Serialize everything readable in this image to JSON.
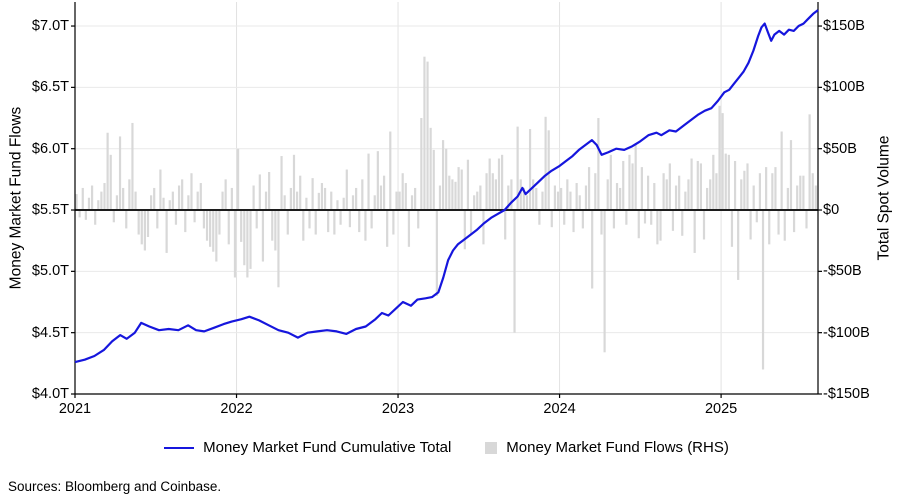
{
  "source_note": "Sources: Bloomberg and Coinbase.",
  "left_axis": {
    "title": "Money Market Fund Flows",
    "ticks": [
      "$7.0T",
      "$6.5T",
      "$6.0T",
      "$5.5T",
      "$5.0T",
      "$4.5T",
      "$4.0T"
    ],
    "tick_values": [
      7.0,
      6.5,
      6.0,
      5.5,
      5.0,
      4.5,
      4.0
    ]
  },
  "right_axis": {
    "title": "Total Spot Volume",
    "ticks": [
      "$150B",
      "$100B",
      "$50B",
      "$0",
      "-$50B",
      "-$100B",
      "-$150B"
    ],
    "tick_values": [
      150,
      100,
      50,
      0,
      -50,
      -100,
      -150
    ]
  },
  "x_axis": {
    "ticks": [
      "2021",
      "2022",
      "2023",
      "2024",
      "2025"
    ],
    "tick_values": [
      2021,
      2022,
      2023,
      2024,
      2025
    ]
  },
  "legend": [
    {
      "label": "Money Market Fund Cumulative Total",
      "type": "line",
      "color": "#1616dd"
    },
    {
      "label": "Money Market Fund Flows (RHS)",
      "type": "square",
      "color": "#d8d8d8"
    }
  ],
  "colors": {
    "line": "#1616dd",
    "bar": "#d8d8d8",
    "grid": "#e9e9e9",
    "grid_vertical": "#e2e2e2",
    "zero_line": "#1c1c1c",
    "spine": "#000000"
  },
  "chart_data": {
    "type": "combo",
    "grid": true,
    "legend_position": "bottom",
    "x_range": [
      2021.0,
      2025.6
    ],
    "left_value_range": [
      4.0,
      7.196
    ],
    "right_value_range": [
      -150,
      169.6
    ],
    "series": [
      {
        "name": "Money Market Fund Cumulative Total",
        "type": "line",
        "axis": "left",
        "unit": "$T",
        "x": [
          2021.0,
          2021.06,
          2021.12,
          2021.18,
          2021.23,
          2021.28,
          2021.32,
          2021.37,
          2021.41,
          2021.46,
          2021.52,
          2021.58,
          2021.64,
          2021.7,
          2021.75,
          2021.8,
          2021.86,
          2021.92,
          2021.97,
          2022.03,
          2022.08,
          2022.14,
          2022.2,
          2022.26,
          2022.32,
          2022.38,
          2022.44,
          2022.5,
          2022.56,
          2022.62,
          2022.68,
          2022.74,
          2022.8,
          2022.86,
          2022.9,
          2022.94,
          2022.99,
          2023.03,
          2023.08,
          2023.12,
          2023.17,
          2023.21,
          2023.25,
          2023.28,
          2023.31,
          2023.34,
          2023.37,
          2023.41,
          2023.45,
          2023.49,
          2023.53,
          2023.58,
          2023.62,
          2023.66,
          2023.7,
          2023.74,
          2023.77,
          2023.79,
          2023.83,
          2023.87,
          2023.91,
          2023.95,
          2024.0,
          2024.04,
          2024.08,
          2024.12,
          2024.16,
          2024.2,
          2024.23,
          2024.26,
          2024.3,
          2024.35,
          2024.4,
          2024.45,
          2024.5,
          2024.55,
          2024.6,
          2024.63,
          2024.68,
          2024.72,
          2024.77,
          2024.82,
          2024.86,
          2024.9,
          2024.94,
          2024.98,
          2025.02,
          2025.05,
          2025.08,
          2025.11,
          2025.14,
          2025.17,
          2025.2,
          2025.23,
          2025.25,
          2025.27,
          2025.29,
          2025.31,
          2025.33,
          2025.36,
          2025.39,
          2025.42,
          2025.45,
          2025.48,
          2025.51,
          2025.54,
          2025.57,
          2025.6
        ],
        "y": [
          4.26,
          4.28,
          4.31,
          4.36,
          4.43,
          4.48,
          4.45,
          4.5,
          4.58,
          4.55,
          4.52,
          4.53,
          4.52,
          4.56,
          4.52,
          4.51,
          4.54,
          4.57,
          4.59,
          4.61,
          4.63,
          4.6,
          4.56,
          4.52,
          4.5,
          4.46,
          4.5,
          4.51,
          4.52,
          4.51,
          4.49,
          4.53,
          4.55,
          4.61,
          4.66,
          4.64,
          4.7,
          4.75,
          4.72,
          4.77,
          4.78,
          4.79,
          4.83,
          4.95,
          5.09,
          5.17,
          5.22,
          5.26,
          5.3,
          5.34,
          5.39,
          5.44,
          5.47,
          5.5,
          5.56,
          5.61,
          5.68,
          5.63,
          5.68,
          5.73,
          5.78,
          5.82,
          5.86,
          5.9,
          5.94,
          5.99,
          6.03,
          6.07,
          6.03,
          5.95,
          5.97,
          6.0,
          5.99,
          6.02,
          6.06,
          6.11,
          6.13,
          6.11,
          6.15,
          6.14,
          6.19,
          6.24,
          6.28,
          6.31,
          6.33,
          6.39,
          6.46,
          6.48,
          6.53,
          6.58,
          6.63,
          6.7,
          6.8,
          6.92,
          6.99,
          7.02,
          6.95,
          6.88,
          6.93,
          6.96,
          6.93,
          6.97,
          6.96,
          7.0,
          7.02,
          7.06,
          7.1,
          7.13
        ]
      },
      {
        "name": "Money Market Fund Flows (RHS)",
        "type": "bar",
        "axis": "right",
        "unit": "$B",
        "start_year": 2021,
        "weeks_per_year": 52,
        "values": [
          13,
          -6,
          18,
          -8,
          10,
          20,
          -12,
          8,
          15,
          22,
          63,
          45,
          -10,
          12,
          60,
          18,
          -15,
          25,
          71,
          15,
          -20,
          -28,
          -33,
          -22,
          12,
          18,
          -15,
          33,
          10,
          -35,
          8,
          15,
          -12,
          20,
          25,
          -18,
          12,
          30,
          -10,
          15,
          22,
          -15,
          -25,
          -30,
          -34,
          -42,
          -20,
          15,
          25,
          -28,
          18,
          -55,
          50,
          -26,
          -45,
          -55,
          -48,
          20,
          -15,
          29,
          -42,
          15,
          31,
          -25,
          -33,
          -63,
          44,
          12,
          -20,
          18,
          45,
          15,
          28,
          -25,
          10,
          -15,
          26,
          -20,
          14,
          22,
          18,
          -18,
          15,
          -20,
          8,
          -12,
          10,
          33,
          -14,
          12,
          18,
          -18,
          25,
          -25,
          46,
          -15,
          12,
          48,
          20,
          28,
          -30,
          64,
          -20,
          15,
          15,
          30,
          22,
          -30,
          12,
          18,
          -15,
          75,
          125,
          121,
          67,
          49,
          -70,
          20,
          57,
          50,
          28,
          25,
          23,
          35,
          33,
          -32,
          41,
          -20,
          12,
          15,
          20,
          -28,
          30,
          42,
          30,
          25,
          42,
          45,
          -24,
          20,
          25,
          -100,
          68,
          25,
          18,
          12,
          66,
          25,
          18,
          -12,
          15,
          76,
          65,
          -14,
          20,
          15,
          18,
          -12,
          25,
          15,
          -18,
          22,
          12,
          -15,
          20,
          35,
          -64,
          30,
          75,
          -20,
          -116,
          25,
          45,
          -15,
          22,
          18,
          40,
          -12,
          45,
          38,
          54,
          -23,
          35,
          -11,
          28,
          -12,
          22,
          -28,
          -25,
          30,
          25,
          38,
          -17,
          20,
          28,
          -21,
          15,
          25,
          42,
          -35,
          40,
          38,
          -24,
          18,
          25,
          45,
          30,
          85,
          79,
          46,
          45,
          -30,
          40,
          -57,
          25,
          32,
          38,
          -24,
          20,
          -10,
          30,
          -130,
          35,
          -28,
          30,
          35,
          -20,
          64,
          -25,
          18,
          57,
          -18,
          20,
          28,
          28,
          -15,
          78,
          30,
          20
        ]
      }
    ]
  }
}
